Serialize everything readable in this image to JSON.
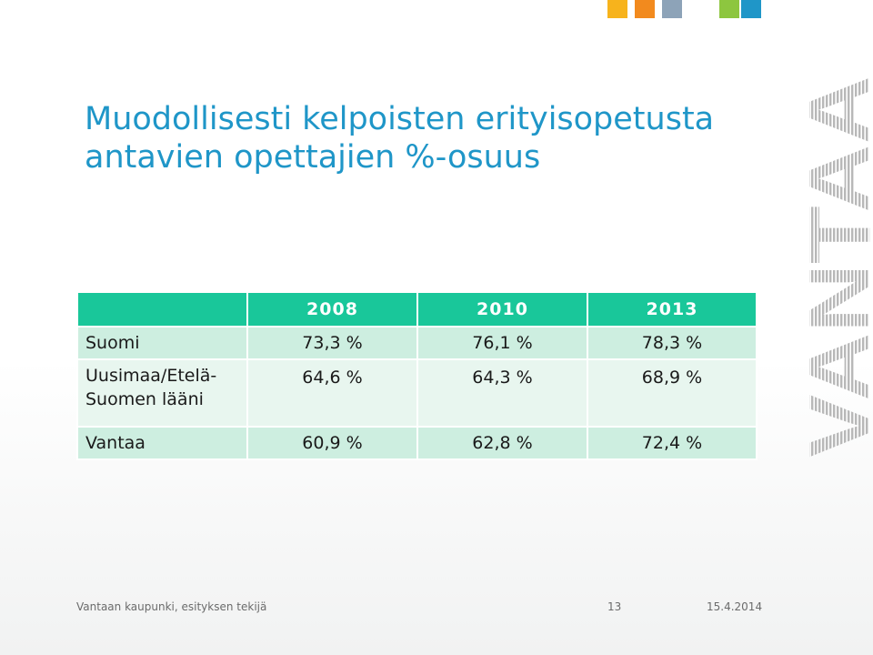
{
  "title": "Muodollisesti kelpoisten erityisopetusta antavien opettajien %-osuus",
  "table": {
    "columns": [
      "",
      "2008",
      "2010",
      "2013"
    ],
    "rows": [
      {
        "label": "Suomi",
        "values": [
          "73,3 %",
          "76,1 %",
          "78,3 %"
        ]
      },
      {
        "label": "Uusimaa/Etelä-Suomen lääni",
        "values": [
          "64,6 %",
          "64,3 %",
          "68,9 %"
        ]
      },
      {
        "label": "Vantaa",
        "values": [
          "60,9 %",
          "62,8 %",
          "72,4 %"
        ]
      }
    ]
  },
  "logo": {
    "text": "VANTAA"
  },
  "footer": {
    "author": "Vantaan kaupunki, esityksen tekijä",
    "page": "13",
    "date": "15.4.2014"
  },
  "colors": {
    "title": "#1f96c8",
    "header": "#19c79a",
    "row_dark": "#cdeee0",
    "row_light": "#e8f6ef",
    "squares": [
      "#f7b31c",
      "#f28a1e",
      "#8da3b8",
      "#8dc63f",
      "#1f96c8"
    ]
  }
}
